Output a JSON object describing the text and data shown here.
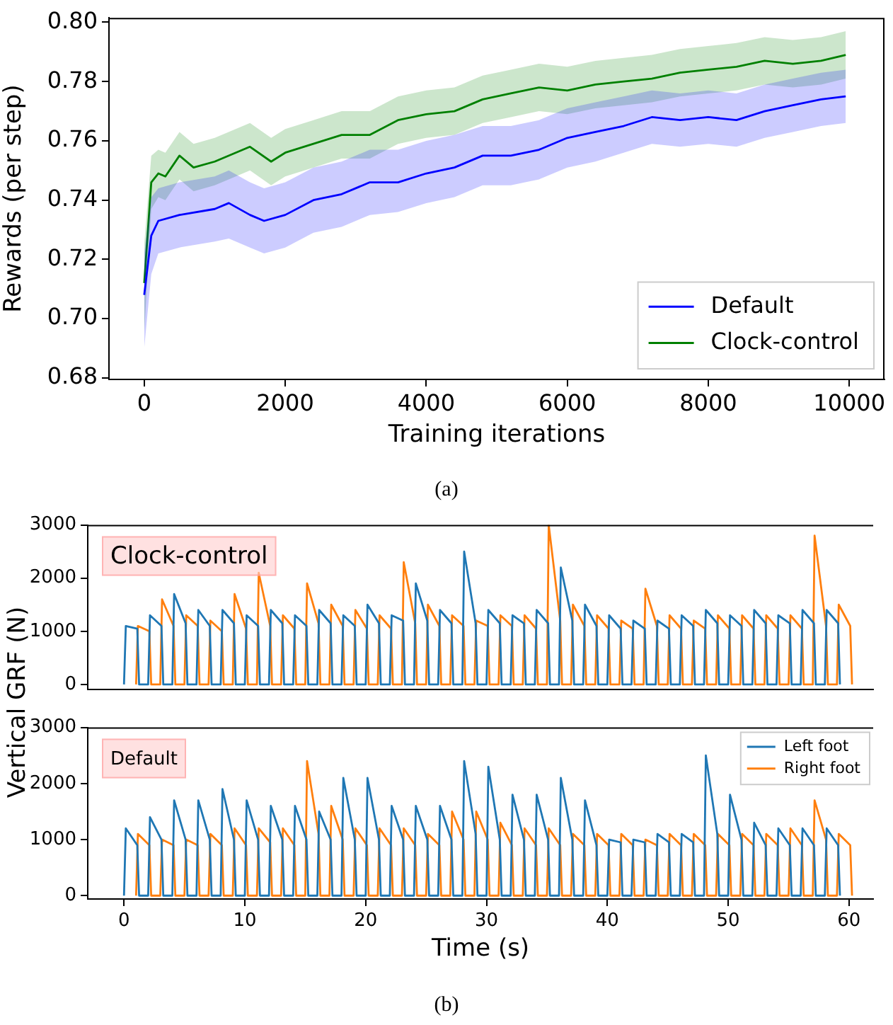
{
  "chart_data": [
    {
      "type": "line",
      "xlabel": "Training iterations",
      "ylabel": "Rewards (per step)",
      "xlim": [
        -500,
        10500
      ],
      "ylim": [
        0.6795,
        0.8015
      ],
      "xticks": [
        0,
        2000,
        4000,
        6000,
        8000,
        10000
      ],
      "yticks": [
        {
          "value": 0.68,
          "label": "0.68"
        },
        {
          "value": 0.7,
          "label": "0.70"
        },
        {
          "value": 0.72,
          "label": "0.72"
        },
        {
          "value": 0.74,
          "label": "0.74"
        },
        {
          "value": 0.76,
          "label": "0.76"
        },
        {
          "value": 0.78,
          "label": "0.78"
        },
        {
          "value": 0.8,
          "label": "0.80"
        }
      ],
      "grid": false,
      "legend": "bottom right",
      "annotations": [
        "(a)"
      ],
      "series": [
        {
          "name": "Default",
          "color": "#0000ff",
          "x": [
            0,
            100,
            200,
            500,
            1000,
            1200,
            1500,
            1700,
            2000,
            2400,
            2800,
            3200,
            3600,
            4000,
            4400,
            4800,
            5200,
            5600,
            6000,
            6400,
            6800,
            7200,
            7600,
            8000,
            8400,
            8800,
            9200,
            9600,
            9950
          ],
          "values": [
            0.708,
            0.728,
            0.733,
            0.735,
            0.737,
            0.739,
            0.735,
            0.733,
            0.735,
            0.74,
            0.742,
            0.746,
            0.746,
            0.749,
            0.751,
            0.755,
            0.755,
            0.757,
            0.761,
            0.763,
            0.765,
            0.768,
            0.767,
            0.768,
            0.767,
            0.77,
            0.772,
            0.774,
            0.775
          ],
          "lower": [
            0.69,
            0.715,
            0.722,
            0.724,
            0.726,
            0.727,
            0.724,
            0.722,
            0.724,
            0.729,
            0.731,
            0.735,
            0.736,
            0.739,
            0.741,
            0.745,
            0.745,
            0.747,
            0.751,
            0.753,
            0.756,
            0.759,
            0.758,
            0.759,
            0.758,
            0.761,
            0.763,
            0.765,
            0.766
          ],
          "upper": [
            0.722,
            0.741,
            0.744,
            0.746,
            0.748,
            0.75,
            0.746,
            0.744,
            0.746,
            0.751,
            0.753,
            0.757,
            0.757,
            0.76,
            0.762,
            0.765,
            0.765,
            0.767,
            0.771,
            0.773,
            0.775,
            0.777,
            0.776,
            0.777,
            0.776,
            0.779,
            0.781,
            0.783,
            0.784
          ]
        },
        {
          "name": "Clock-control",
          "color": "#008000",
          "x": [
            0,
            100,
            200,
            300,
            500,
            700,
            1000,
            1500,
            1800,
            2000,
            2400,
            2800,
            3200,
            3600,
            4000,
            4400,
            4800,
            5200,
            5600,
            6000,
            6400,
            6800,
            7200,
            7600,
            8000,
            8400,
            8800,
            9200,
            9600,
            9950
          ],
          "values": [
            0.712,
            0.746,
            0.749,
            0.748,
            0.755,
            0.751,
            0.753,
            0.758,
            0.753,
            0.756,
            0.759,
            0.762,
            0.762,
            0.767,
            0.769,
            0.77,
            0.774,
            0.776,
            0.778,
            0.777,
            0.779,
            0.78,
            0.781,
            0.783,
            0.784,
            0.785,
            0.787,
            0.786,
            0.787,
            0.789
          ],
          "lower": [
            0.695,
            0.737,
            0.741,
            0.74,
            0.747,
            0.743,
            0.745,
            0.75,
            0.745,
            0.748,
            0.751,
            0.754,
            0.754,
            0.759,
            0.761,
            0.762,
            0.766,
            0.768,
            0.77,
            0.769,
            0.771,
            0.772,
            0.773,
            0.775,
            0.776,
            0.777,
            0.779,
            0.778,
            0.779,
            0.781
          ],
          "upper": [
            0.725,
            0.755,
            0.757,
            0.756,
            0.763,
            0.759,
            0.761,
            0.766,
            0.761,
            0.764,
            0.767,
            0.77,
            0.77,
            0.775,
            0.777,
            0.778,
            0.782,
            0.784,
            0.786,
            0.785,
            0.787,
            0.788,
            0.789,
            0.791,
            0.792,
            0.793,
            0.795,
            0.794,
            0.795,
            0.797
          ]
        }
      ]
    },
    {
      "type": "line",
      "ylabel": "Vertical GRF (N)",
      "xlim": [
        -3,
        62
      ],
      "ylim": [
        -100,
        3000
      ],
      "xticks": [
        0,
        10,
        20,
        30,
        40,
        50,
        60
      ],
      "yticks": [
        0,
        1000,
        2000,
        3000
      ],
      "grid": false,
      "legend": false,
      "tick_labels": "y",
      "annotations": [
        "Clock-control"
      ],
      "x": [
        0,
        0.15,
        1.1,
        1.25,
        2,
        2.15,
        3.1,
        3.25,
        4,
        4.15,
        5.1,
        5.25,
        6,
        6.15,
        7.1,
        7.25,
        8,
        8.15,
        9.1,
        9.25,
        10,
        10.15,
        11.1,
        11.25,
        12,
        12.15,
        13.1,
        13.25,
        14,
        14.15,
        15.1,
        15.25,
        16,
        16.15,
        17.1,
        17.25,
        18,
        18.15,
        19.1,
        19.25,
        20,
        20.15,
        21.1,
        21.25,
        22,
        22.15,
        23.1,
        23.25,
        24,
        24.15,
        25.1,
        25.25,
        26,
        26.15,
        27.1,
        27.25,
        28,
        28.15,
        29.1,
        29.25,
        30,
        30.15,
        31.1,
        31.25,
        32,
        32.15,
        33.1,
        33.25,
        34,
        34.15,
        35.1,
        35.25,
        36,
        36.15,
        37.1,
        37.25,
        38,
        38.15,
        39.1,
        39.25,
        40,
        40.15,
        41.1,
        41.25,
        42,
        42.15,
        43.1,
        43.25,
        44,
        44.15,
        45.1,
        45.25,
        46,
        46.15,
        47.1,
        47.25,
        48,
        48.15,
        49.1,
        49.25,
        50,
        50.15,
        51.1,
        51.25,
        52,
        52.15,
        53.1,
        53.25,
        54,
        54.15,
        55.1,
        55.25,
        56,
        56.15,
        57.1,
        57.25,
        58,
        58.15,
        59.1,
        59.25
      ],
      "series": [
        {
          "color": "#1f77b4",
          "values": [
            0,
            1100,
            1050,
            0,
            0,
            1300,
            1100,
            0,
            0,
            1700,
            1150,
            0,
            0,
            1400,
            1100,
            0,
            0,
            1400,
            1150,
            0,
            0,
            1300,
            1100,
            0,
            0,
            1400,
            1150,
            0,
            0,
            1300,
            1100,
            0,
            0,
            1400,
            1150,
            0,
            0,
            1300,
            1100,
            0,
            0,
            1500,
            1150,
            0,
            0,
            1300,
            1200,
            0,
            0,
            1900,
            1200,
            0,
            0,
            1400,
            1150,
            0,
            0,
            2500,
            1150,
            0,
            0,
            1400,
            1150,
            0,
            0,
            1300,
            1150,
            0,
            0,
            1400,
            1150,
            0,
            0,
            2200,
            1200,
            0,
            0,
            1500,
            1100,
            0,
            0,
            1300,
            1050,
            0,
            0,
            1200,
            1050,
            0,
            0,
            1200,
            1050,
            0,
            0,
            1300,
            1100,
            0,
            0,
            1400,
            1150,
            0,
            0,
            1300,
            1100,
            0,
            0,
            1400,
            1150,
            0,
            0,
            1300,
            1150,
            0,
            0,
            1400,
            1150,
            0,
            0,
            1400,
            1150,
            0
          ]
        },
        {
          "color": "#ff7f0e",
          "x": [
            1,
            1.15,
            2.1,
            2.25,
            3,
            3.15,
            4.1,
            4.25,
            5,
            5.15,
            6.1,
            6.25,
            7,
            7.15,
            8.1,
            8.25,
            9,
            9.15,
            10.1,
            10.25,
            11,
            11.15,
            12.1,
            12.25,
            13,
            13.15,
            14.1,
            14.25,
            15,
            15.15,
            16.1,
            16.25,
            17,
            17.15,
            18.1,
            18.25,
            19,
            19.15,
            20.1,
            20.25,
            21,
            21.15,
            22.1,
            22.25,
            23,
            23.15,
            24.1,
            24.25,
            25,
            25.15,
            26.1,
            26.25,
            27,
            27.15,
            28.1,
            28.25,
            29,
            29.15,
            30.1,
            30.25,
            31,
            31.15,
            32.1,
            32.25,
            33,
            33.15,
            34.1,
            34.25,
            35,
            35.15,
            36.1,
            36.25,
            37,
            37.15,
            38.1,
            38.25,
            39,
            39.15,
            40.1,
            40.25,
            41,
            41.15,
            42.1,
            42.25,
            43,
            43.15,
            44.1,
            44.25,
            45,
            45.15,
            46.1,
            46.25,
            47,
            47.15,
            48.1,
            48.25,
            49,
            49.15,
            50.1,
            50.25,
            51,
            51.15,
            52.1,
            52.25,
            53,
            53.15,
            54.1,
            54.25,
            55,
            55.15,
            56.1,
            56.25,
            57,
            57.15,
            58.1,
            58.25,
            59,
            59.15,
            60.1,
            60.25
          ],
          "values": [
            0,
            1100,
            1000,
            0,
            0,
            1600,
            1100,
            0,
            0,
            1300,
            1100,
            0,
            0,
            1200,
            1000,
            0,
            0,
            1700,
            1050,
            0,
            0,
            2100,
            1100,
            0,
            0,
            1300,
            1050,
            0,
            0,
            1900,
            1150,
            0,
            0,
            1500,
            1100,
            0,
            0,
            1400,
            1050,
            0,
            0,
            1300,
            1050,
            0,
            0,
            2300,
            1150,
            0,
            0,
            1500,
            1100,
            0,
            0,
            1300,
            1100,
            0,
            0,
            1200,
            1100,
            0,
            0,
            1300,
            1100,
            0,
            0,
            1300,
            1050,
            0,
            0,
            3000,
            1200,
            0,
            0,
            1500,
            1100,
            0,
            0,
            1300,
            1050,
            0,
            0,
            1200,
            1050,
            0,
            0,
            1800,
            1100,
            0,
            0,
            1300,
            1050,
            0,
            0,
            1200,
            1050,
            0,
            0,
            1300,
            1050,
            0,
            0,
            1300,
            1050,
            0,
            0,
            1300,
            1050,
            0,
            0,
            1300,
            1050,
            0,
            0,
            2800,
            1100,
            0,
            0,
            1500,
            1100,
            0
          ]
        }
      ]
    },
    {
      "type": "line",
      "xlabel": "Time (s)",
      "xlim": [
        -3,
        62
      ],
      "ylim": [
        -60,
        3000
      ],
      "xticks": [
        0,
        10,
        20,
        30,
        40,
        50,
        60
      ],
      "yticks": [
        0,
        1000,
        2000,
        3000
      ],
      "grid": false,
      "legend": "top right",
      "annotations": [
        "Default",
        "(b)"
      ],
      "x": [
        0,
        0.15,
        1.1,
        1.25,
        2,
        2.15,
        3.1,
        3.25,
        4,
        4.15,
        5.1,
        5.25,
        6,
        6.15,
        7.1,
        7.25,
        8,
        8.15,
        9.1,
        9.25,
        10,
        10.15,
        11.1,
        11.25,
        12,
        12.15,
        13.1,
        13.25,
        14,
        14.15,
        15.1,
        15.25,
        16,
        16.15,
        17.1,
        17.25,
        18,
        18.15,
        19.1,
        19.25,
        20,
        20.15,
        21.1,
        21.25,
        22,
        22.15,
        23.1,
        23.25,
        24,
        24.15,
        25.1,
        25.25,
        26,
        26.15,
        27.1,
        27.25,
        28,
        28.15,
        29.1,
        29.25,
        30,
        30.15,
        31.1,
        31.25,
        32,
        32.15,
        33.1,
        33.25,
        34,
        34.15,
        35.1,
        35.25,
        36,
        36.15,
        37.1,
        37.25,
        38,
        38.15,
        39.1,
        39.25,
        40,
        40.15,
        41.1,
        41.25,
        42,
        42.15,
        43.1,
        43.25,
        44,
        44.15,
        45.1,
        45.25,
        46,
        46.15,
        47.1,
        47.25,
        48,
        48.15,
        49.1,
        49.25,
        50,
        50.15,
        51.1,
        51.25,
        52,
        52.15,
        53.1,
        53.25,
        54,
        54.15,
        55.1,
        55.25,
        56,
        56.15,
        57.1,
        57.25,
        58,
        58.15,
        59.1,
        59.25
      ],
      "series": [
        {
          "name": "Left foot",
          "color": "#1f77b4",
          "values": [
            0,
            1200,
            900,
            0,
            0,
            1400,
            1000,
            0,
            0,
            1700,
            1000,
            0,
            0,
            1700,
            1000,
            0,
            0,
            1900,
            1000,
            0,
            0,
            1700,
            1000,
            0,
            0,
            1600,
            1000,
            0,
            0,
            1600,
            1000,
            0,
            0,
            1500,
            1000,
            0,
            0,
            2100,
            1000,
            0,
            0,
            2100,
            1000,
            0,
            0,
            1600,
            1000,
            0,
            0,
            1600,
            1000,
            0,
            0,
            1600,
            1000,
            0,
            0,
            2400,
            1100,
            0,
            0,
            2300,
            1000,
            0,
            0,
            1800,
            1000,
            0,
            0,
            1800,
            1000,
            0,
            0,
            2100,
            1000,
            0,
            0,
            1700,
            900,
            0,
            0,
            1000,
            950,
            0,
            0,
            1000,
            950,
            0,
            0,
            1100,
            950,
            0,
            0,
            1100,
            950,
            0,
            0,
            2500,
            1100,
            0,
            0,
            1800,
            1000,
            0,
            0,
            1300,
            900,
            0,
            0,
            1200,
            900,
            0,
            0,
            1200,
            900,
            0,
            0,
            1200,
            900,
            0
          ]
        },
        {
          "name": "Right foot",
          "color": "#ff7f0e",
          "x": [
            1,
            1.15,
            2.1,
            2.25,
            3,
            3.15,
            4.1,
            4.25,
            5,
            5.15,
            6.1,
            6.25,
            7,
            7.15,
            8.1,
            8.25,
            9,
            9.15,
            10.1,
            10.25,
            11,
            11.15,
            12.1,
            12.25,
            13,
            13.15,
            14.1,
            14.25,
            15,
            15.15,
            16.1,
            16.25,
            17,
            17.15,
            18.1,
            18.25,
            19,
            19.15,
            20.1,
            20.25,
            21,
            21.15,
            22.1,
            22.25,
            23,
            23.15,
            24.1,
            24.25,
            25,
            25.15,
            26.1,
            26.25,
            27,
            27.15,
            28.1,
            28.25,
            29,
            29.15,
            30.1,
            30.25,
            31,
            31.15,
            32.1,
            32.25,
            33,
            33.15,
            34.1,
            34.25,
            35,
            35.15,
            36.1,
            36.25,
            37,
            37.15,
            38.1,
            38.25,
            39,
            39.15,
            40.1,
            40.25,
            41,
            41.15,
            42.1,
            42.25,
            43,
            43.15,
            44.1,
            44.25,
            45,
            45.15,
            46.1,
            46.25,
            47,
            47.15,
            48.1,
            48.25,
            49,
            49.15,
            50.1,
            50.25,
            51,
            51.15,
            52.1,
            52.25,
            53,
            53.15,
            54.1,
            54.25,
            55,
            55.15,
            56.1,
            56.25,
            57,
            57.15,
            58.1,
            58.25,
            59,
            59.15,
            60.1,
            60.25
          ],
          "values": [
            0,
            1100,
            900,
            0,
            0,
            1000,
            900,
            0,
            0,
            1000,
            900,
            0,
            0,
            1100,
            900,
            0,
            0,
            1200,
            900,
            0,
            0,
            1200,
            950,
            0,
            0,
            1200,
            900,
            0,
            0,
            2400,
            1100,
            0,
            0,
            1600,
            1000,
            0,
            0,
            1200,
            900,
            0,
            0,
            1200,
            900,
            0,
            0,
            1200,
            900,
            0,
            0,
            1100,
            900,
            0,
            0,
            1500,
            1000,
            0,
            0,
            1500,
            1000,
            0,
            0,
            1300,
            900,
            0,
            0,
            1200,
            900,
            0,
            0,
            1200,
            900,
            0,
            0,
            1100,
            900,
            0,
            0,
            1100,
            900,
            0,
            0,
            1100,
            900,
            0,
            0,
            1000,
            900,
            0,
            0,
            1100,
            900,
            0,
            0,
            1100,
            900,
            0,
            0,
            1100,
            900,
            0,
            0,
            1100,
            900,
            0,
            0,
            1100,
            900,
            0,
            0,
            1200,
            900,
            0,
            0,
            1700,
            1000,
            0,
            0,
            1100,
            900,
            0
          ]
        }
      ]
    }
  ]
}
